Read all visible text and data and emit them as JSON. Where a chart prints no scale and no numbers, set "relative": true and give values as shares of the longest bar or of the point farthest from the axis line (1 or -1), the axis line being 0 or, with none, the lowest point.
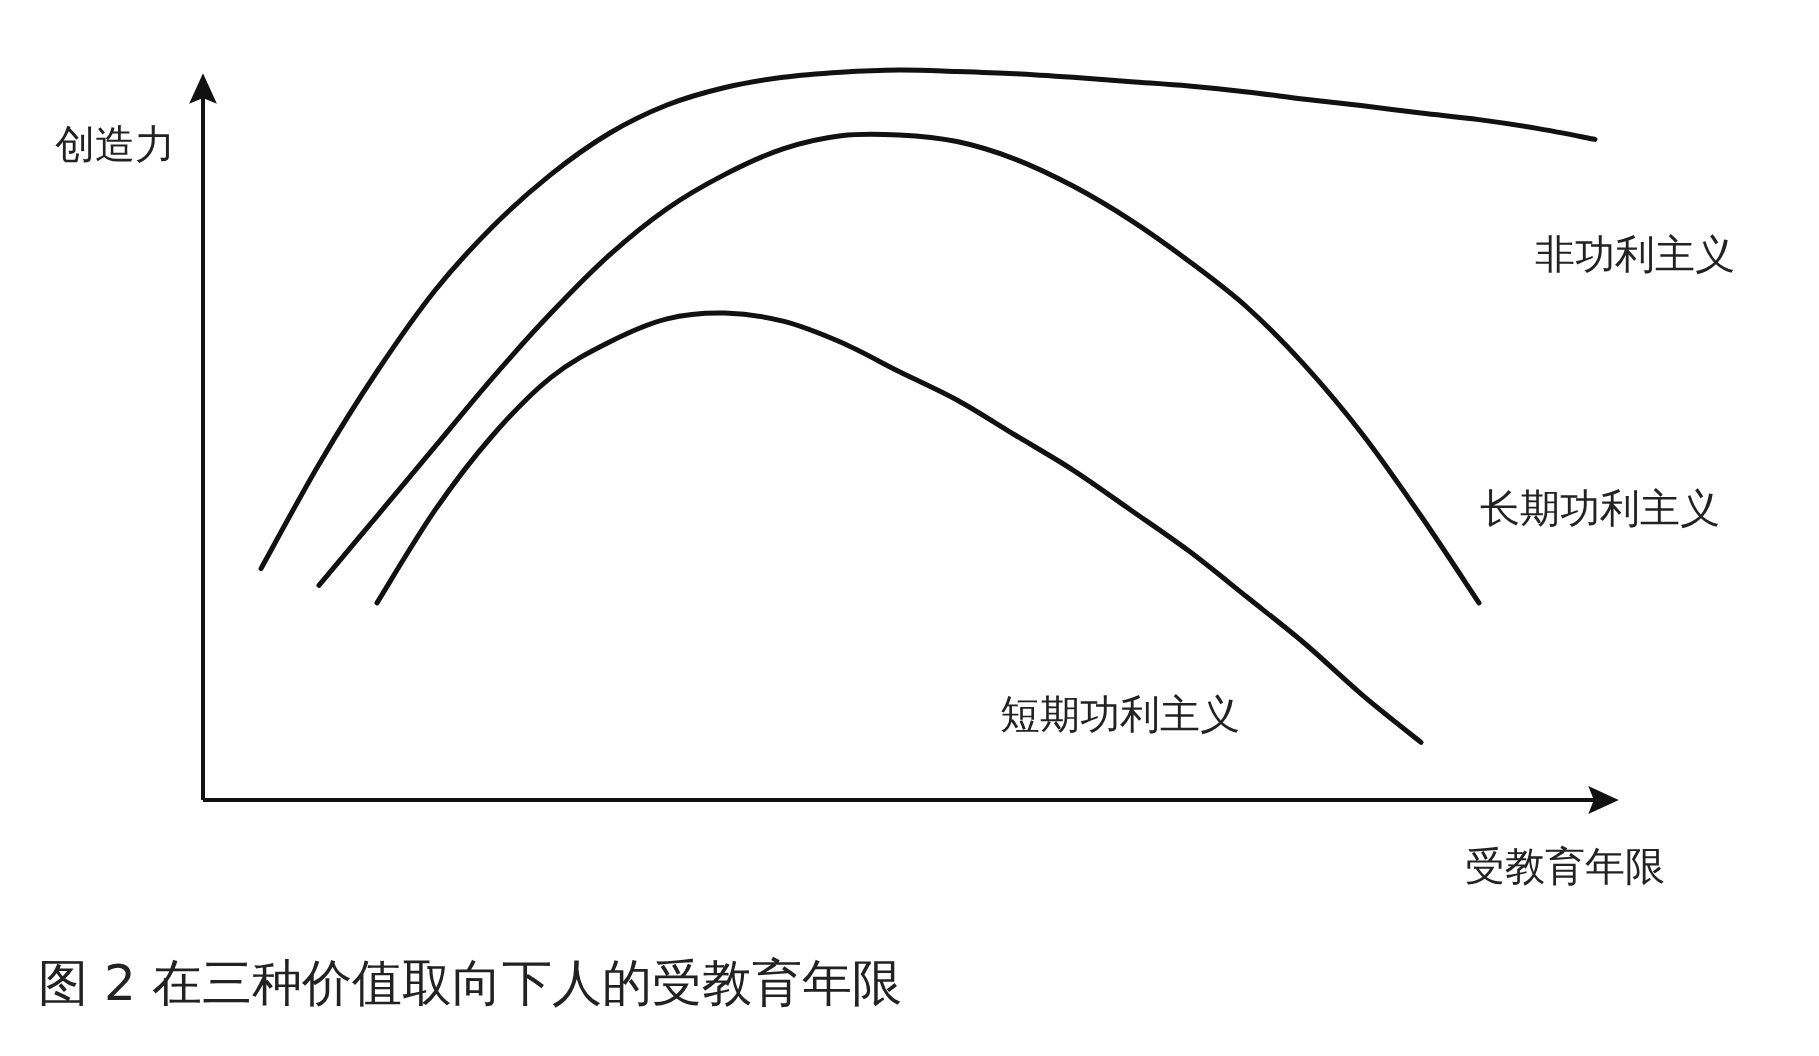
{
  "chart_data": {
    "type": "line",
    "relative": true,
    "title": "图 2  在三种价值取向下人的受教育年限",
    "xlabel": "受教育年限",
    "ylabel": "创造力",
    "line_style": "solid",
    "categories": [
      null,
      null,
      null,
      null,
      null,
      null,
      null,
      null,
      null,
      null,
      null,
      null,
      null,
      null,
      null,
      null,
      null,
      null,
      null,
      null,
      null,
      null,
      null,
      null,
      null
    ],
    "series": [
      {
        "name": "非功利主义",
        "color": "#111111",
        "values": [
          null,
          0.317,
          0.46,
          0.587,
          0.698,
          0.786,
          0.857,
          0.913,
          0.952,
          0.976,
          0.99,
          0.997,
          1,
          0.998,
          0.995,
          0.99,
          0.984,
          0.978,
          0.97,
          0.96,
          0.951,
          0.941,
          0.932,
          0.92,
          0.905
        ]
      },
      {
        "name": "长期功利主义",
        "color": "#111111",
        "values": [
          null,
          null,
          0.294,
          0.389,
          0.484,
          0.579,
          0.667,
          0.746,
          0.81,
          0.857,
          0.892,
          0.91,
          0.911,
          0.902,
          0.878,
          0.841,
          0.794,
          0.738,
          0.675,
          0.595,
          0.5,
          0.389,
          0.27,
          null,
          null
        ]
      },
      {
        "name": "短期功利主义",
        "color": "#111111",
        "values": [
          null,
          null,
          null,
          0.27,
          0.397,
          0.5,
          0.579,
          0.627,
          0.659,
          0.667,
          0.656,
          0.627,
          0.587,
          0.548,
          0.5,
          0.452,
          0.397,
          0.341,
          0.278,
          0.214,
          0.143,
          0.079,
          null,
          null,
          null
        ]
      }
    ]
  }
}
